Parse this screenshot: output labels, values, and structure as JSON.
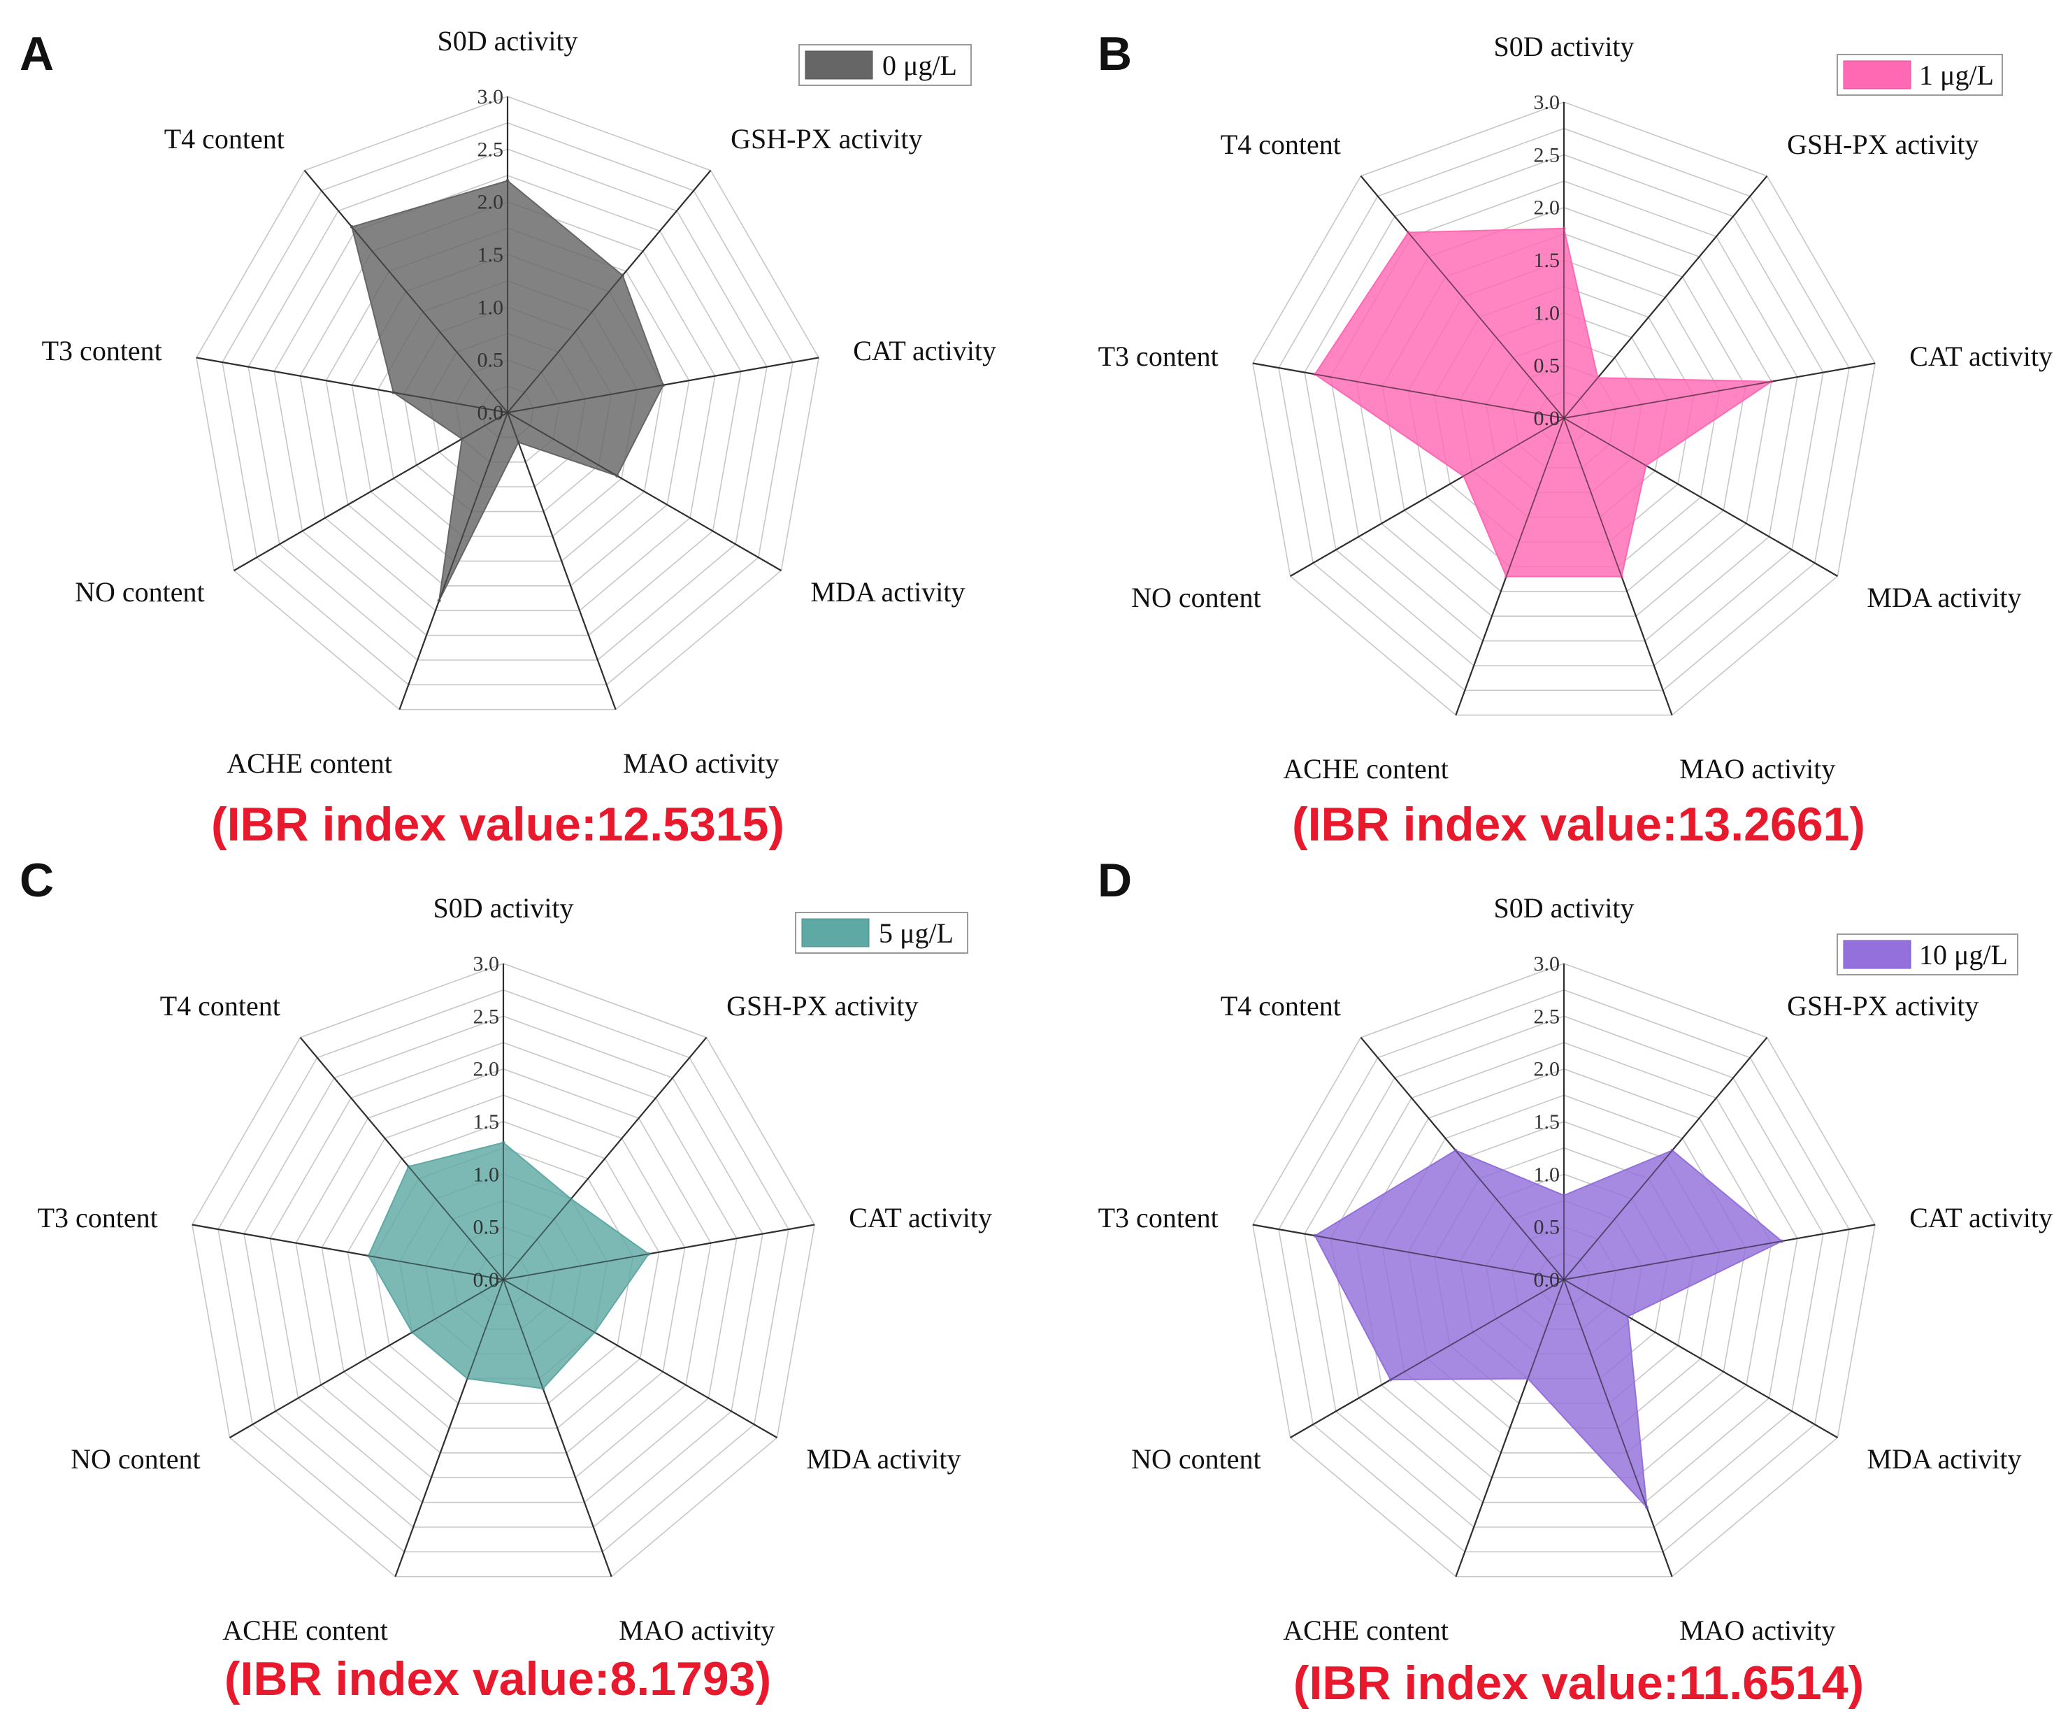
{
  "chart_data": [
    {
      "type": "radar",
      "panel": "A",
      "legend": "0 μg/L",
      "color": "#666666",
      "axes": [
        "S0D activity",
        "GSH-PX activity",
        "CAT activity",
        "MDA activity",
        "MAO activity",
        "ACHE content",
        "NO content",
        "T3 content",
        "T4 content"
      ],
      "values": [
        2.2,
        1.7,
        1.5,
        1.2,
        0.3,
        1.9,
        0.5,
        1.1,
        2.3
      ],
      "rticks": [
        "0.0",
        "0.5",
        "1.0",
        "1.5",
        "2.0",
        "2.5",
        "3.0"
      ],
      "rlim": [
        0,
        3
      ],
      "ibr": "(IBR index value:12.5315)"
    },
    {
      "type": "radar",
      "panel": "B",
      "legend": "1 μg/L",
      "color": "#ff69b4",
      "axes": [
        "S0D activity",
        "GSH-PX activity",
        "CAT activity",
        "MDA activity",
        "MAO activity",
        "ACHE content",
        "NO content",
        "T3 content",
        "T4 content"
      ],
      "values": [
        1.8,
        0.5,
        2.0,
        0.9,
        1.6,
        1.6,
        1.1,
        2.4,
        2.3
      ],
      "rticks": [
        "0.0",
        "0.5",
        "1.0",
        "1.5",
        "2.0",
        "2.5",
        "3.0"
      ],
      "rlim": [
        0,
        3
      ],
      "ibr": "(IBR index value:13.2661)"
    },
    {
      "type": "radar",
      "panel": "C",
      "legend": "5 μg/L",
      "color": "#5fa9a5",
      "axes": [
        "S0D activity",
        "GSH-PX activity",
        "CAT activity",
        "MDA activity",
        "MAO activity",
        "ACHE content",
        "NO content",
        "T3 content",
        "T4 content"
      ],
      "values": [
        1.3,
        1.0,
        1.4,
        1.0,
        1.1,
        1.0,
        1.0,
        1.3,
        1.4
      ],
      "rticks": [
        "0.0",
        "0.5",
        "1.0",
        "1.5",
        "2.0",
        "2.5",
        "3.0"
      ],
      "rlim": [
        0,
        3
      ],
      "ibr": "(IBR index value:8.1793)"
    },
    {
      "type": "radar",
      "panel": "D",
      "legend": "10 μg/L",
      "color": "#9370db",
      "axes": [
        "S0D activity",
        "GSH-PX activity",
        "CAT activity",
        "MDA activity",
        "MAO activity",
        "ACHE content",
        "NO content",
        "T3 content",
        "T4 content"
      ],
      "values": [
        0.8,
        1.6,
        2.1,
        0.7,
        2.3,
        1.0,
        1.9,
        2.4,
        1.6
      ],
      "rticks": [
        "0.0",
        "0.5",
        "1.0",
        "1.5",
        "2.0",
        "2.5",
        "3.0"
      ],
      "rlim": [
        0,
        3
      ],
      "ibr": "(IBR index value:11.6514)"
    }
  ]
}
